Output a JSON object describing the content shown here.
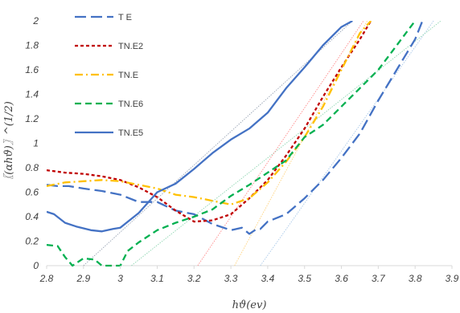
{
  "chart_data": {
    "type": "line",
    "xlabel": "ℎ𝜗(ev)",
    "ylabel": "〖(αℎ𝜗)〗^(1/2)",
    "xlim": [
      2.8,
      3.9
    ],
    "ylim": [
      0,
      2
    ],
    "x_ticks": [
      "2.8",
      "2.9",
      "3",
      "3.1",
      "3.2",
      "3.3",
      "3.4",
      "3.5",
      "3.6",
      "3.7",
      "3.8",
      "3.9"
    ],
    "y_ticks": [
      "0",
      "0.2",
      "0.4",
      "0.6",
      "0.8",
      "1",
      "1.2",
      "1.4",
      "1.6",
      "1.8",
      "2"
    ],
    "grid": "none",
    "legend_position": "top-left",
    "series": [
      {
        "name": "T E",
        "color": "#4472c4",
        "dash": "long-dash",
        "x": [
          2.8,
          2.83,
          2.86,
          2.9,
          2.95,
          3.0,
          3.05,
          3.1,
          3.15,
          3.2,
          3.25,
          3.3,
          3.33,
          3.35,
          3.37,
          3.38,
          3.4,
          3.45,
          3.5,
          3.55,
          3.6,
          3.65,
          3.7,
          3.75,
          3.8,
          3.82
        ],
        "y": [
          0.66,
          0.65,
          0.65,
          0.63,
          0.61,
          0.58,
          0.52,
          0.52,
          0.45,
          0.42,
          0.34,
          0.29,
          0.31,
          0.26,
          0.3,
          0.3,
          0.36,
          0.42,
          0.55,
          0.7,
          0.88,
          1.08,
          1.35,
          1.6,
          1.85,
          2.0
        ]
      },
      {
        "name": "TN.E2",
        "color": "#c00000",
        "dash": "short-dash",
        "x": [
          2.8,
          2.85,
          2.9,
          2.95,
          3.0,
          3.05,
          3.1,
          3.15,
          3.2,
          3.25,
          3.3,
          3.35,
          3.4,
          3.45,
          3.5,
          3.55,
          3.6,
          3.65,
          3.68
        ],
        "y": [
          0.78,
          0.76,
          0.75,
          0.73,
          0.7,
          0.64,
          0.56,
          0.45,
          0.36,
          0.37,
          0.42,
          0.55,
          0.7,
          0.9,
          1.12,
          1.38,
          1.62,
          1.85,
          2.0
        ]
      },
      {
        "name": "TN.E",
        "color": "#ffc000",
        "dash": "dash-dot",
        "x": [
          2.8,
          2.85,
          2.9,
          2.95,
          3.0,
          3.05,
          3.1,
          3.15,
          3.2,
          3.25,
          3.3,
          3.35,
          3.4,
          3.45,
          3.5,
          3.55,
          3.6,
          3.65,
          3.68
        ],
        "y": [
          0.65,
          0.68,
          0.69,
          0.7,
          0.69,
          0.66,
          0.63,
          0.58,
          0.56,
          0.53,
          0.5,
          0.55,
          0.68,
          0.85,
          1.05,
          1.3,
          1.6,
          1.9,
          2.0
        ]
      },
      {
        "name": "TN.E6",
        "color": "#00b050",
        "dash": "dash",
        "x": [
          2.8,
          2.83,
          2.85,
          2.87,
          2.9,
          2.93,
          2.95,
          3.0,
          3.02,
          3.05,
          3.1,
          3.15,
          3.2,
          3.25,
          3.3,
          3.35,
          3.4,
          3.45,
          3.5,
          3.55,
          3.6,
          3.65,
          3.7,
          3.75,
          3.8
        ],
        "y": [
          0.17,
          0.16,
          0.07,
          0.0,
          0.06,
          0.05,
          0.0,
          0.0,
          0.12,
          0.19,
          0.29,
          0.35,
          0.4,
          0.46,
          0.57,
          0.66,
          0.76,
          0.86,
          1.05,
          1.15,
          1.3,
          1.45,
          1.6,
          1.8,
          2.0
        ]
      },
      {
        "name": "TN.E5",
        "color": "#4472c4",
        "dash": "solid",
        "x": [
          2.8,
          2.82,
          2.85,
          2.88,
          2.92,
          2.95,
          2.98,
          3.0,
          3.05,
          3.1,
          3.15,
          3.2,
          3.25,
          3.3,
          3.35,
          3.4,
          3.45,
          3.5,
          3.55,
          3.6,
          3.63
        ],
        "y": [
          0.44,
          0.42,
          0.35,
          0.32,
          0.29,
          0.28,
          0.3,
          0.31,
          0.43,
          0.6,
          0.67,
          0.79,
          0.92,
          1.03,
          1.12,
          1.25,
          1.45,
          1.62,
          1.8,
          1.95,
          2.0
        ]
      }
    ],
    "tangent_lines": [
      {
        "color": "#9aa5b5",
        "from": [
          2.9,
          0.0
        ],
        "to": [
          3.63,
          2.0
        ]
      },
      {
        "color": "#a8c8e8",
        "from": [
          3.38,
          0.0
        ],
        "to": [
          3.85,
          2.0
        ]
      },
      {
        "color": "#8fd6b2",
        "from": [
          3.03,
          0.0
        ],
        "to": [
          3.87,
          2.0
        ]
      },
      {
        "color": "#ff8a8a",
        "from": [
          3.21,
          0.0
        ],
        "to": [
          3.66,
          2.0
        ]
      },
      {
        "color": "#ffd27a",
        "from": [
          3.31,
          0.0
        ],
        "to": [
          3.67,
          2.0
        ]
      }
    ]
  }
}
